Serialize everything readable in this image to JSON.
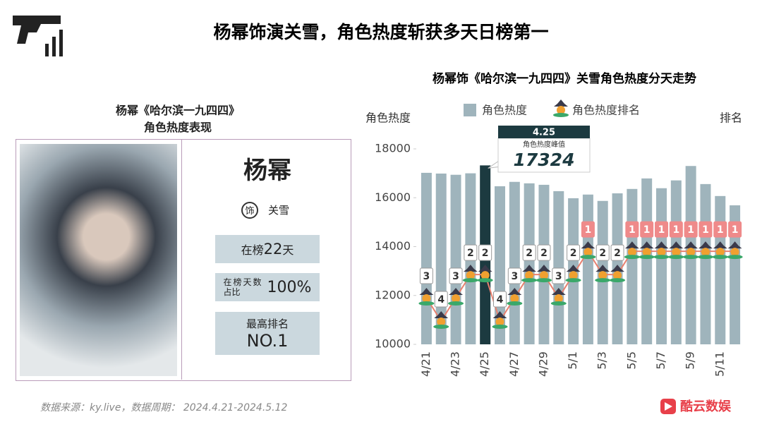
{
  "header": {
    "title": "杨幂饰演关雪，角色热度斩获多天日榜第一"
  },
  "profile": {
    "title": "杨幂《哈尔滨一九四四》",
    "subtitle": "角色热度表现",
    "name": "杨幂",
    "role_icon": "饰",
    "role": "关雪",
    "days": {
      "prefix": "在榜",
      "value": 22,
      "suffix": "天"
    },
    "share": {
      "label": "在榜天数占比",
      "value": "100%"
    },
    "best_rank": {
      "label": "最高排名",
      "value": "NO.1"
    }
  },
  "chart_data": {
    "type": "bar",
    "title": "杨幂饰《哈尔滨一九四四》关雪角色热度分天走势",
    "y_label": "角色热度",
    "y2_label": "排名",
    "categories": [
      "4/21",
      null,
      "4/23",
      null,
      "4/25",
      null,
      "4/27",
      null,
      "4/29",
      null,
      "5/1",
      null,
      "5/3",
      null,
      "5/5",
      null,
      "5/7",
      null,
      "5/9",
      null,
      "5/11",
      null
    ],
    "series": [
      {
        "name": "角色热度",
        "color": "#9fb4bc",
        "highlight_color": "#1c3a40",
        "values": [
          17020,
          16990,
          16940,
          17000,
          17324,
          16470,
          16650,
          16590,
          16530,
          16270,
          15980,
          16130,
          15870,
          16180,
          16360,
          16790,
          16390,
          16710,
          17300,
          16560,
          16070,
          15690
        ]
      },
      {
        "name": "角色热度排名",
        "type": "line",
        "axis": "y2",
        "color": "#e8806f",
        "highlight_label_color": "#ef8a8a",
        "values": [
          3,
          4,
          3,
          2,
          2,
          4,
          3,
          2,
          2,
          3,
          2,
          1,
          2,
          2,
          1,
          1,
          1,
          1,
          1,
          1,
          1,
          1
        ]
      }
    ],
    "ylim": [
      10000,
      18000
    ],
    "yticks": [
      10000,
      12000,
      14000,
      16000,
      18000
    ],
    "y2lim": [
      5,
      -3.4
    ],
    "annotation": {
      "date": "4.25",
      "label": "角色热度峰值",
      "value": 17324
    }
  },
  "footer": {
    "source": "数据来源：ky.live，数据周期： 2024.4.21-2024.5.12",
    "brand": "酷云数娱"
  }
}
